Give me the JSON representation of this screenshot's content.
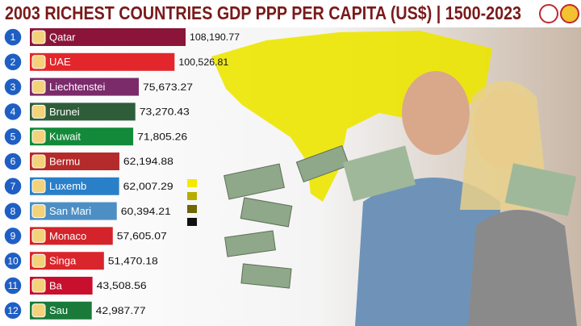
{
  "chart_data": {
    "type": "bar",
    "orientation": "horizontal",
    "title": "2003 RICHEST COUNTRIES GDP PPP PER CAPITA (US$) | 1500-2023",
    "ranks": [
      1,
      2,
      3,
      4,
      5,
      6,
      7,
      8,
      9,
      10,
      11,
      12
    ],
    "categories": [
      "Qatar",
      "UAE",
      "Liechtenstei",
      "Brunei",
      "Kuwait",
      "Bermu",
      "Luxemb",
      "San Mari",
      "Monaco",
      "Singa",
      "Ba",
      "Sau"
    ],
    "values": [
      108190.77,
      100526.81,
      75673.27,
      73270.43,
      71805.26,
      62194.88,
      62007.29,
      60394.21,
      57605.07,
      51470.18,
      43508.56,
      42987.77
    ],
    "value_labels": [
      "108,190.77",
      "100,526.81",
      "75,673.27",
      "73,270.43",
      "71,805.26",
      "62,194.88",
      "62,007.29",
      "60,394.21",
      "57,605.07",
      "51,470.18",
      "43,508.56",
      "42,987.77"
    ],
    "colors": [
      "#8a1538",
      "#e3262b",
      "#7b2a6a",
      "#2f5d3a",
      "#138a3a",
      "#b52a2a",
      "#2a7fc9",
      "#4d8fc4",
      "#d4232a",
      "#d9262c",
      "#c8102e",
      "#1a7a3a"
    ]
  }
}
